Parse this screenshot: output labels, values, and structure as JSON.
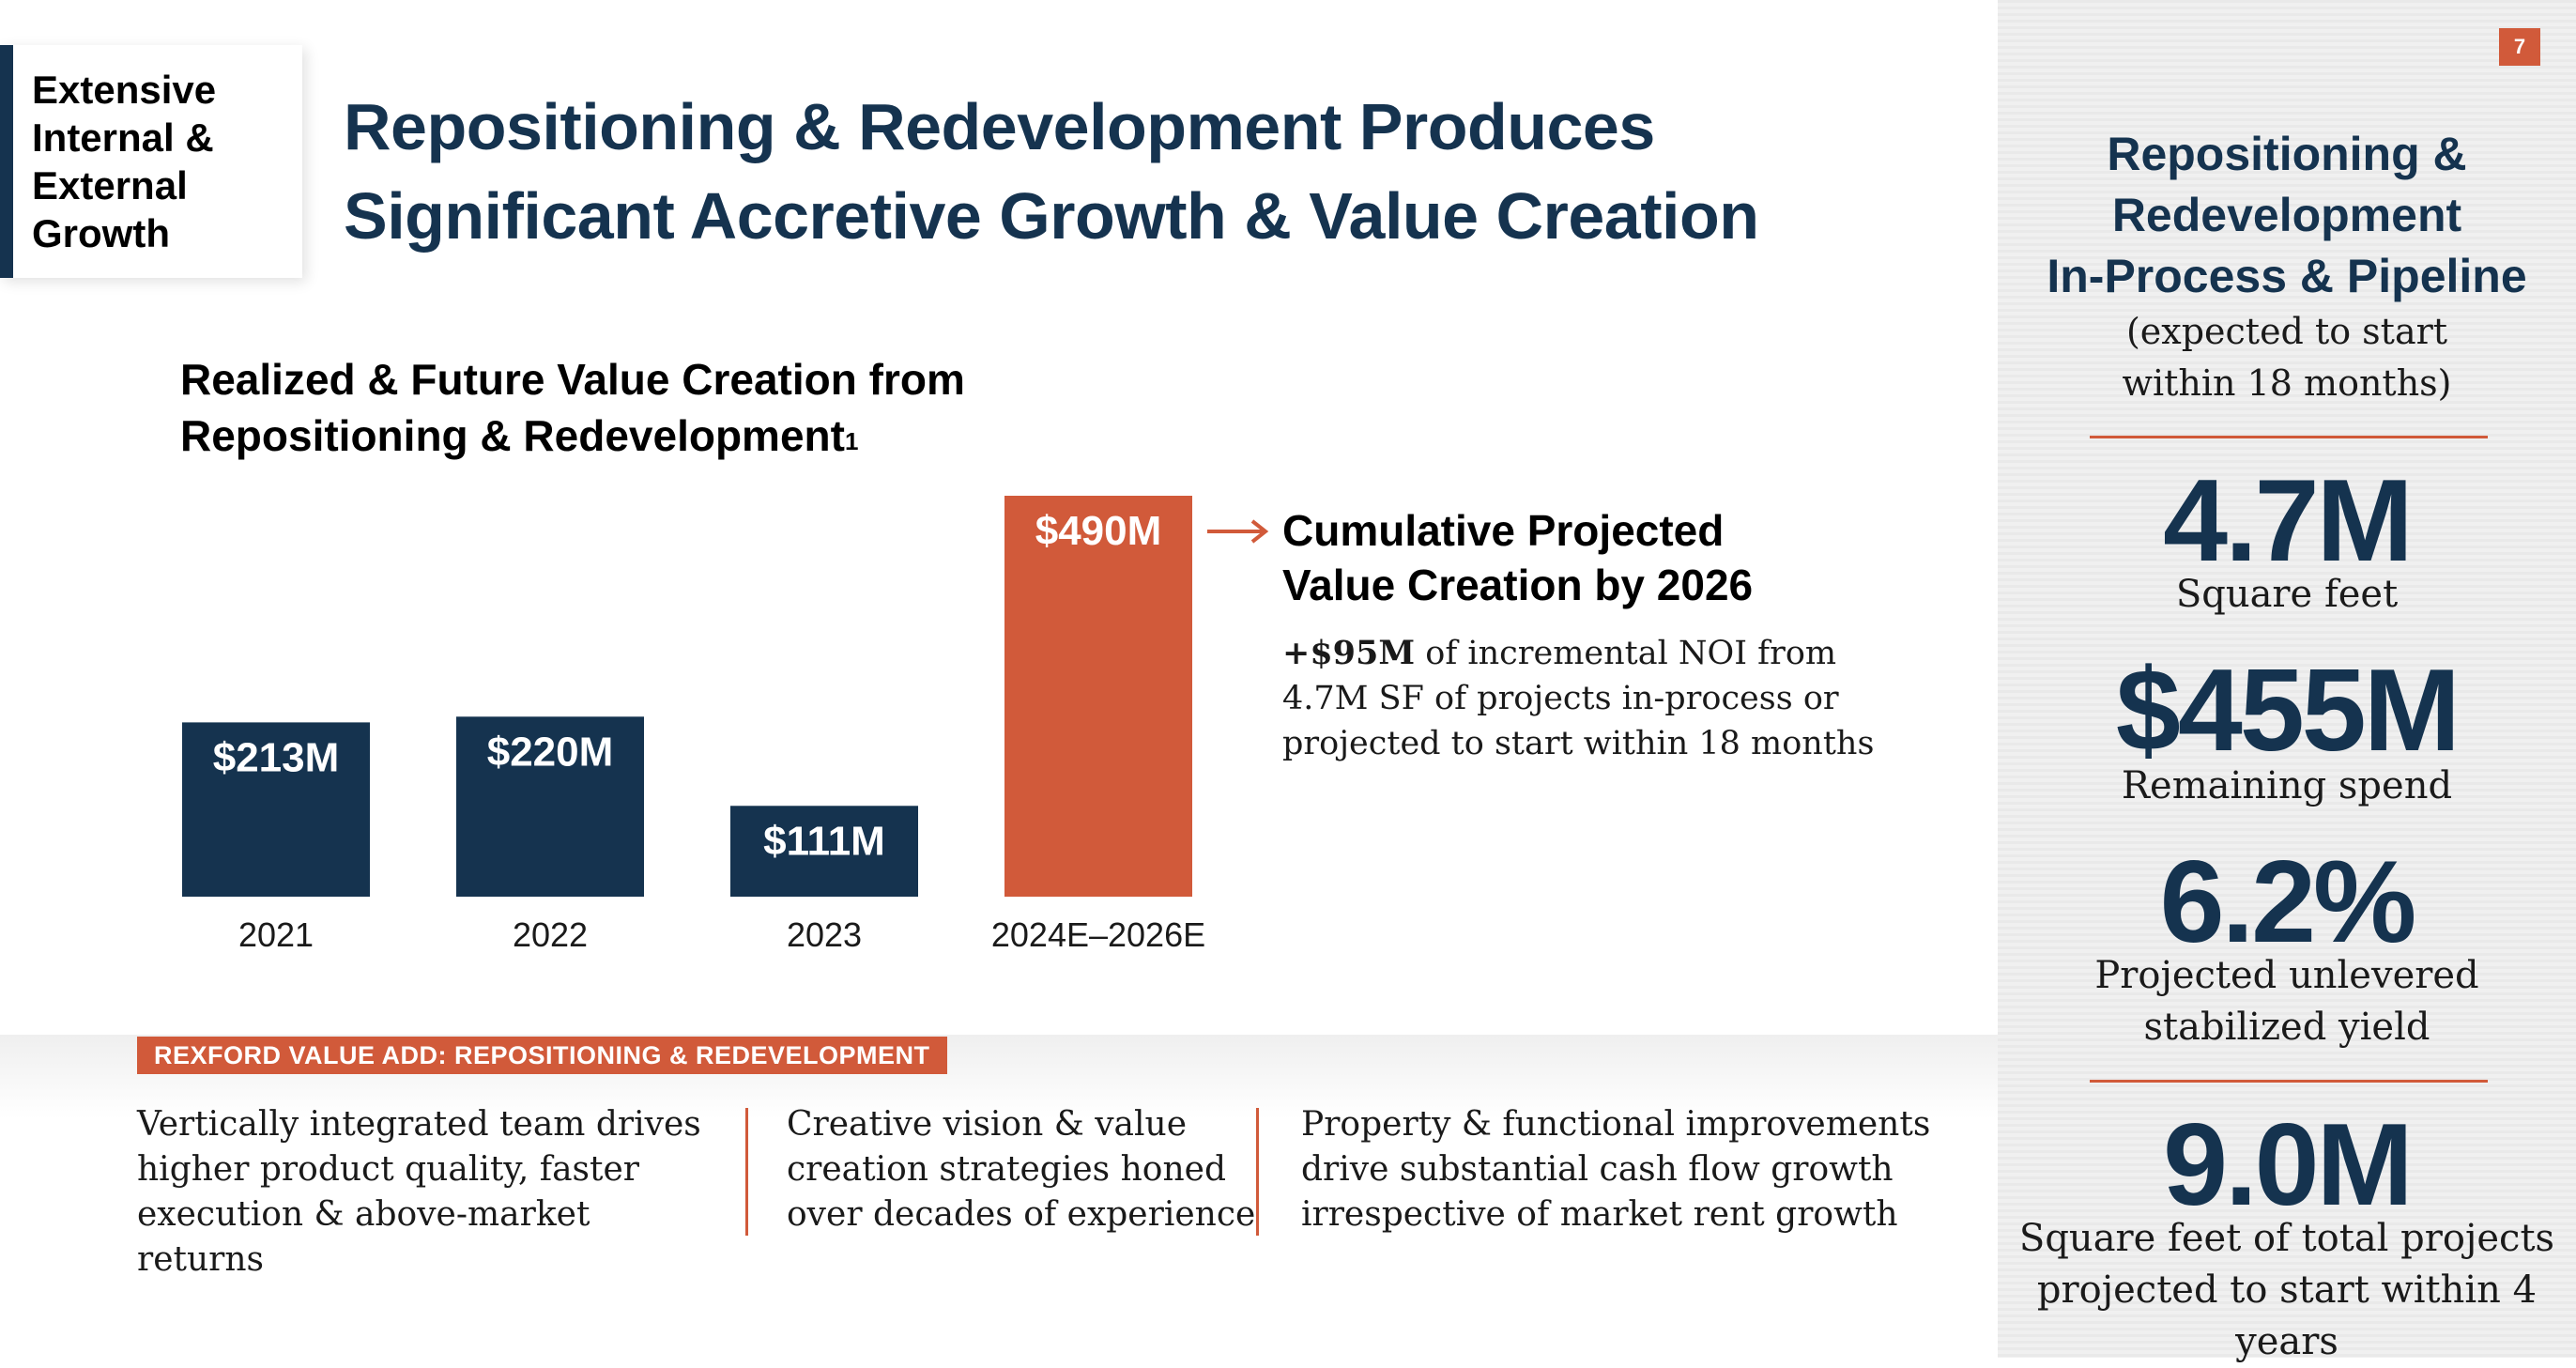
{
  "page_number": "7",
  "section_tag": "Extensive Internal & External Growth",
  "title": "Repositioning & Redevelopment Produces Significant Accretive Growth & Value Creation",
  "title_lines": [
    "Repositioning & Redevelopment Produces",
    "Significant Accretive Growth & Value Creation"
  ],
  "chart_title": {
    "line1": "Realized & Future Value Creation from",
    "line2": "Repositioning & Redevelopment",
    "footnote": "1"
  },
  "chart_data": {
    "type": "bar",
    "categories": [
      "2021",
      "2022",
      "2023",
      "2024E–2026E"
    ],
    "values": [
      213,
      220,
      111,
      490
    ],
    "labels": [
      "$213M",
      "$220M",
      "$111M",
      "$490M"
    ],
    "unit": "$M",
    "colors": [
      "#15334f",
      "#15334f",
      "#15334f",
      "#d15a3a"
    ],
    "title": "Realized & Future Value Creation from Repositioning & Redevelopment",
    "xlabel": "",
    "ylabel": "",
    "grid": false
  },
  "callout": {
    "heading_line1": "Cumulative Projected",
    "heading_line2": "Value Creation by 2026",
    "body_bold": "+$95M",
    "body_lines": [
      " of incremental NOI from",
      "4.7M SF of projects in-process or",
      "projected to start within 18 months"
    ]
  },
  "value_add": {
    "badge": "REXFORD VALUE ADD: REPOSITIONING & REDEVELOPMENT",
    "columns": [
      [
        "Vertically integrated team drives",
        "higher product quality, faster",
        "execution & above-market returns"
      ],
      [
        "Creative vision & value",
        "creation strategies honed",
        "over decades of experience"
      ],
      [
        "Property & functional improvements",
        "drive substantial cash flow growth",
        "irrespective of market rent growth"
      ]
    ]
  },
  "pipeline": {
    "title_lines": [
      "Repositioning &",
      "Redevelopment",
      "In-Process & Pipeline"
    ],
    "subtitle_lines": [
      "(expected to start",
      "within 18 months)"
    ],
    "stats": [
      {
        "value": "4.7M",
        "label_lines": [
          "Square feet"
        ]
      },
      {
        "value": "$455M",
        "label_lines": [
          "Remaining spend"
        ]
      },
      {
        "value": "6.2%",
        "label_lines": [
          "Projected unlevered",
          "stabilized yield"
        ]
      },
      {
        "value": "9.0M",
        "label_lines": [
          "Square feet of total projects",
          "projected to start within 4 years"
        ]
      }
    ]
  },
  "colors": {
    "navy": "#15334f",
    "accent": "#d15a3a"
  }
}
